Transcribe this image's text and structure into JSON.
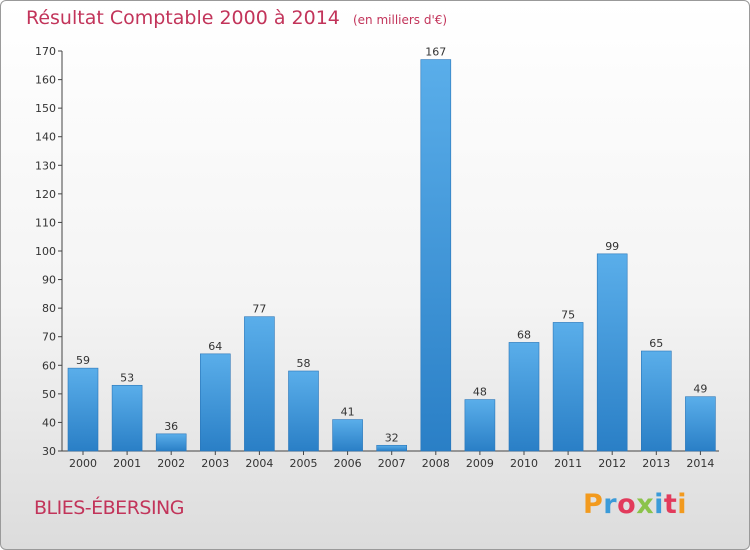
{
  "title": "Résultat Comptable 2000 à 2014",
  "unit": "(en milliers d'€)",
  "town": "BLIES-ÉBERSING",
  "logo_text": "Proxiti",
  "colors": {
    "title": "#c2345a",
    "bar_light": "#5aaeea",
    "bar_dark": "#2a7fc6"
  },
  "chart_data": {
    "type": "bar",
    "title": "Résultat Comptable 2000 à 2014",
    "ylabel": "en milliers d'€",
    "xlabel": "",
    "categories": [
      "2000",
      "2001",
      "2002",
      "2003",
      "2004",
      "2005",
      "2006",
      "2007",
      "2008",
      "2009",
      "2010",
      "2011",
      "2012",
      "2013",
      "2014"
    ],
    "values": [
      59,
      53,
      36,
      64,
      77,
      58,
      41,
      32,
      167,
      48,
      68,
      75,
      99,
      65,
      49
    ],
    "ylim": [
      30,
      170
    ],
    "yticks": [
      30,
      40,
      50,
      60,
      70,
      80,
      90,
      100,
      110,
      120,
      130,
      140,
      150,
      160,
      170
    ],
    "grid": false
  }
}
